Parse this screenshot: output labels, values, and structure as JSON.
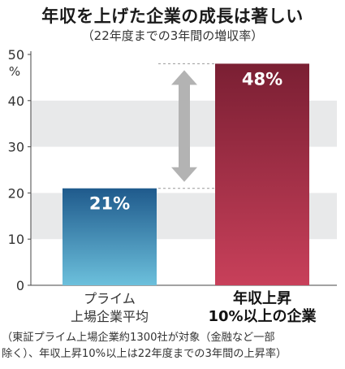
{
  "title": "年収を上げた企業の成長は著しい",
  "subtitle": "（22年度までの3年間の増収率）",
  "chart_data": {
    "type": "bar",
    "categories": [
      [
        "プライム",
        "上場企業平均"
      ],
      [
        "年収上昇",
        "10%以上の企業"
      ]
    ],
    "values": [
      21,
      48
    ],
    "value_labels": [
      "21%",
      "48%"
    ],
    "ylim": [
      0,
      50
    ],
    "yticks": [
      0,
      10,
      20,
      30,
      40,
      50
    ],
    "y_unit": "%",
    "grid": "alternating bands",
    "colors": {
      "bar1_top": "#1f5a8c",
      "bar1_bottom": "#6cc0dc",
      "bar2_top": "#7a1f33",
      "bar2_bottom": "#c8405a",
      "band": "#e8e9ea",
      "arrow": "#b3b3b3"
    }
  },
  "note": [
    "（東証プライム上場企業約1300社が対象（金融など一部",
    "除く）、年収上昇10%以上は22年度までの3年間の上昇率）"
  ]
}
